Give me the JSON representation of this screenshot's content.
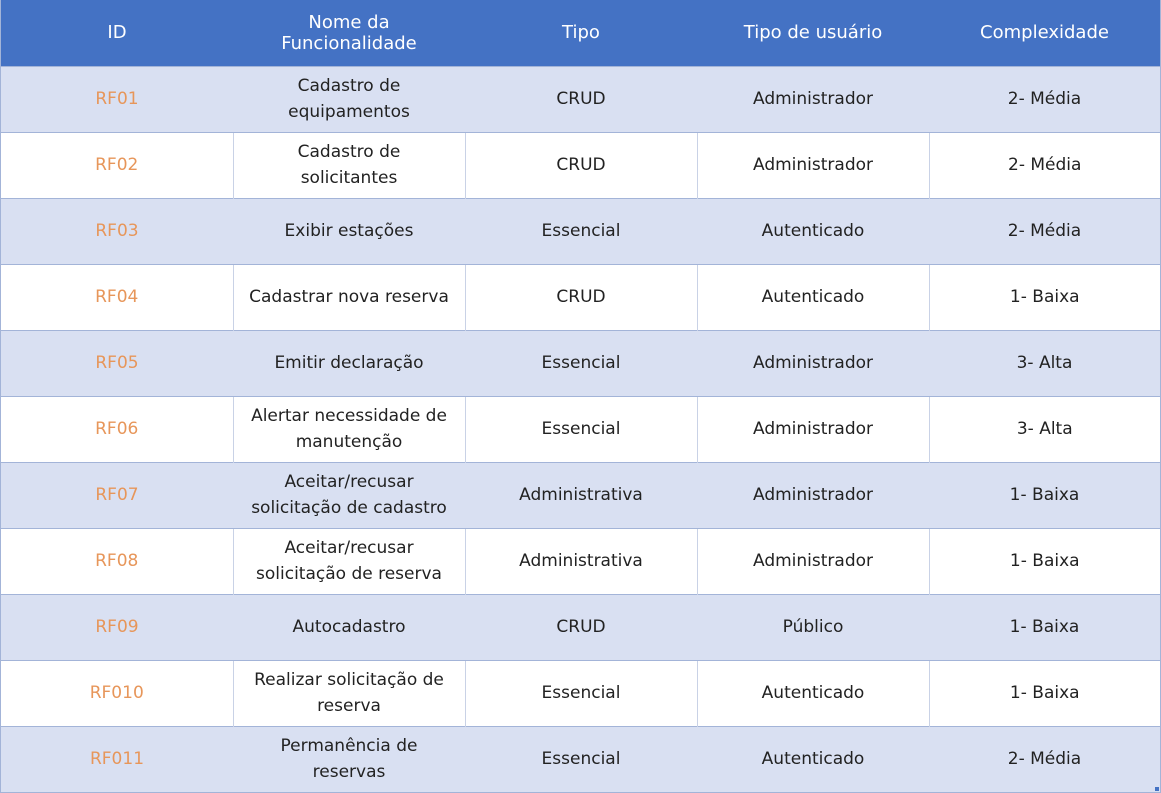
{
  "table": {
    "headers": [
      "ID",
      "Nome da Funcionalidade",
      "Tipo",
      "Tipo de usuário",
      "Complexidade"
    ],
    "rows": [
      {
        "id": "RF01",
        "name": "Cadastro de equipamentos",
        "tipo": "CRUD",
        "usuario": "Administrador",
        "complexidade": "2- Média"
      },
      {
        "id": "RF02",
        "name": "Cadastro de solicitantes",
        "tipo": "CRUD",
        "usuario": "Administrador",
        "complexidade": "2- Média"
      },
      {
        "id": "RF03",
        "name": "Exibir estações",
        "tipo": "Essencial",
        "usuario": "Autenticado",
        "complexidade": "2- Média"
      },
      {
        "id": "RF04",
        "name": "Cadastrar nova reserva",
        "tipo": "CRUD",
        "usuario": "Autenticado",
        "complexidade": "1- Baixa"
      },
      {
        "id": "RF05",
        "name": "Emitir declaração",
        "tipo": "Essencial",
        "usuario": "Administrador",
        "complexidade": "3- Alta"
      },
      {
        "id": "RF06",
        "name": "Alertar necessidade de manutenção",
        "tipo": "Essencial",
        "usuario": "Administrador",
        "complexidade": "3- Alta"
      },
      {
        "id": "RF07",
        "name": "Aceitar/recusar solicitação de cadastro",
        "tipo": "Administrativa",
        "usuario": "Administrador",
        "complexidade": "1- Baixa"
      },
      {
        "id": "RF08",
        "name": "Aceitar/recusar solicitação de reserva",
        "tipo": "Administrativa",
        "usuario": "Administrador",
        "complexidade": "1- Baixa"
      },
      {
        "id": "RF09",
        "name": "Autocadastro",
        "tipo": "CRUD",
        "usuario": "Público",
        "complexidade": "1- Baixa"
      },
      {
        "id": "RF010",
        "name": "Realizar solicitação de reserva",
        "tipo": "Essencial",
        "usuario": "Autenticado",
        "complexidade": "1- Baixa"
      },
      {
        "id": "RF011",
        "name": "Permanência de reservas",
        "tipo": "Essencial",
        "usuario": "Autenticado",
        "complexidade": "2- Média"
      }
    ]
  },
  "colors": {
    "header_bg": "#4472c4",
    "header_text": "#ffffff",
    "band_row": "#d9e0f2",
    "id_text": "#e7965a"
  }
}
